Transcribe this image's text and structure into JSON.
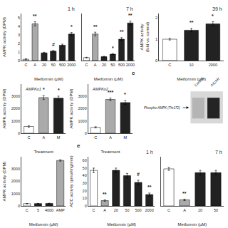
{
  "chart_data": [
    {
      "type": "bar",
      "title": "1 h",
      "categories": [
        "C",
        "A",
        "20",
        "50",
        "500",
        "2000"
      ],
      "values": [
        0.15,
        4.3,
        0.9,
        1.1,
        1.8,
        3.1
      ],
      "errors": [
        0.05,
        0.25,
        0.07,
        0.08,
        0.12,
        0.18
      ],
      "colors": [
        "white",
        "#aaaaaa",
        "#222222",
        "#222222",
        "#222222",
        "#222222"
      ],
      "annotations": [
        {
          "category": "A",
          "text": "**"
        },
        {
          "category": "50",
          "text": "#"
        },
        {
          "category": "2000",
          "text": "*"
        }
      ],
      "xlabel": "Metformin (μM)",
      "ylabel": "AMPK activity (DPM)",
      "ylim": [
        0,
        5.5
      ],
      "yticks": [
        0,
        1,
        2,
        3,
        4,
        5
      ],
      "grid": false
    },
    {
      "type": "bar",
      "title": "7 h",
      "categories": [
        "C",
        "A",
        "20",
        "50",
        "500",
        "2000"
      ],
      "values": [
        0.35,
        3.1,
        0.45,
        0.75,
        2.5,
        4.4
      ],
      "errors": [
        0.04,
        0.22,
        0.05,
        0.07,
        0.18,
        0.22
      ],
      "colors": [
        "white",
        "#aaaaaa",
        "#222222",
        "#222222",
        "#222222",
        "#222222"
      ],
      "annotations": [
        {
          "category": "A",
          "text": "**"
        },
        {
          "category": "50",
          "text": "*"
        },
        {
          "category": "500",
          "text": "**"
        },
        {
          "category": "2000",
          "text": "**"
        }
      ],
      "xlabel": "Metformin (μM)",
      "ylim": [
        0,
        5.5
      ],
      "yticks": [
        0,
        1,
        2,
        3,
        4,
        5
      ],
      "grid": false,
      "tick_labels": "x"
    },
    {
      "type": "bar",
      "title": "39 h",
      "categories": [
        "C",
        "10",
        "2000"
      ],
      "values": [
        1.0,
        1.42,
        1.72
      ],
      "errors": [
        0.04,
        0.08,
        0.1
      ],
      "colors": [
        "white",
        "#222222",
        "#222222"
      ],
      "annotations": [
        {
          "category": "10",
          "text": "**"
        },
        {
          "category": "2000",
          "text": "*"
        }
      ],
      "xlabel": "Metformin (μM)",
      "ylabel": "AMPK activity\n(fold vs. control)",
      "ylim": [
        0,
        2.2
      ],
      "yticks": [
        0,
        1,
        2
      ],
      "grid": false
    },
    {
      "type": "bar",
      "subtitle": "AMPKα1",
      "categories": [
        "C",
        "A",
        "M"
      ],
      "values": [
        550,
        2900,
        2850
      ],
      "errors": [
        60,
        160,
        170
      ],
      "colors": [
        "white",
        "#aaaaaa",
        "#222222"
      ],
      "annotations": [
        {
          "category": "A",
          "text": "*"
        },
        {
          "category": "M",
          "text": "*"
        }
      ],
      "xlabel": "Treatment",
      "ylabel": "AMPK activity (DPM)",
      "ylim": [
        0,
        4000
      ],
      "yticks": [
        0,
        1000,
        2000,
        3000
      ],
      "grid": false
    },
    {
      "type": "bar",
      "subtitle": "AMPKα2",
      "categories": [
        "C",
        "A",
        "M"
      ],
      "values": [
        480,
        2750,
        2500
      ],
      "errors": [
        50,
        110,
        155
      ],
      "colors": [
        "white",
        "#aaaaaa",
        "#222222"
      ],
      "annotations": [
        {
          "category": "A",
          "text": "***"
        },
        {
          "category": "M",
          "text": "*"
        }
      ],
      "xlabel": "Treatment",
      "ylabel": "AMPK activity (DPM)",
      "ylim": [
        0,
        4000
      ],
      "yticks": [
        0,
        1000,
        2000,
        3000
      ],
      "grid": false
    },
    {
      "type": "blot",
      "panel_label": "c",
      "label": "Phospho-AMPK (Thr172)",
      "categories": [
        "Control",
        "AICAR"
      ],
      "colors": [
        "#999999",
        "#1a1a1a"
      ],
      "color": "#d8d8d8"
    },
    {
      "type": "bar",
      "categories": [
        "C",
        "5",
        "4000",
        "AMP"
      ],
      "values": [
        185,
        195,
        205,
        3700
      ],
      "errors": [
        15,
        15,
        15,
        60
      ],
      "colors": [
        "white",
        "#222222",
        "#222222",
        "#aaaaaa"
      ],
      "xlabel": "Metformin (μM)",
      "ylabel": "AMPK activity (DPM)",
      "ylim": [
        0,
        4000
      ],
      "yticks": [
        0,
        1000,
        2000,
        3000
      ],
      "grid": false
    },
    {
      "type": "bar",
      "title": "1 h",
      "panel_label": "e",
      "categories": [
        "C",
        "A",
        "20",
        "50",
        "500",
        "2000"
      ],
      "values": [
        47,
        7,
        47,
        40,
        31,
        15
      ],
      "errors": [
        3,
        1,
        3,
        3,
        3,
        2
      ],
      "colors": [
        "white",
        "#aaaaaa",
        "#222222",
        "#222222",
        "#222222",
        "#222222"
      ],
      "annotations": [
        {
          "category": "A",
          "text": "**"
        },
        {
          "category": "500",
          "text": "#"
        },
        {
          "category": "2000",
          "text": "**"
        }
      ],
      "xlabel": "Metformin (μM)",
      "ylabel": "ACC activity (pmol/mg/min)",
      "ylim": [
        0,
        65
      ],
      "yticks": [
        0,
        10,
        20,
        30,
        40,
        50,
        60
      ],
      "grid": false
    },
    {
      "type": "bar",
      "title": "7 h",
      "categories": [
        "C",
        "A",
        "20",
        "50"
      ],
      "values": [
        49,
        8,
        44,
        44
      ],
      "errors": [
        2,
        1,
        3,
        3
      ],
      "colors": [
        "white",
        "#aaaaaa",
        "#222222",
        "#222222"
      ],
      "annotations": [
        {
          "category": "A",
          "text": "**"
        }
      ],
      "xlabel": "Metformin (μM)",
      "ylim": [
        0,
        65
      ],
      "yticks": [
        0,
        10,
        20,
        30,
        40,
        50,
        60
      ],
      "grid": false,
      "tick_labels": "x"
    }
  ]
}
